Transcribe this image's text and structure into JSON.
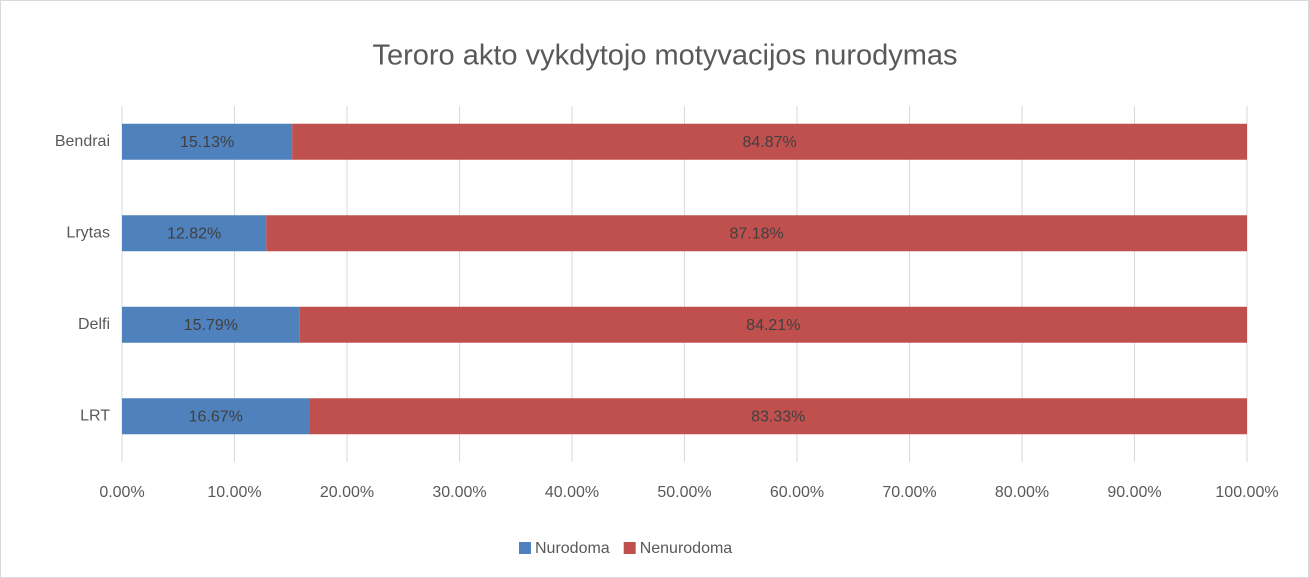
{
  "chart_data": {
    "type": "stacked-barh",
    "title": "Teroro akto vykdytojo motyvacijos nurodymas",
    "categories": [
      "Bendrai",
      "Lrytas",
      "Delfi",
      "LRT"
    ],
    "series": [
      {
        "name": "Nurodoma",
        "color": "#4f81bd",
        "values": [
          15.13,
          12.82,
          15.79,
          16.67
        ],
        "value_labels": [
          "15.13%",
          "12.82%",
          "15.79%",
          "16.67%"
        ]
      },
      {
        "name": "Nenurodoma",
        "color": "#c0504d",
        "values": [
          84.87,
          87.18,
          84.21,
          83.33
        ],
        "value_labels": [
          "84.87%",
          "87.18%",
          "84.21%",
          "83.33%"
        ]
      }
    ],
    "xlim": [
      0,
      100
    ],
    "xticks": [
      {
        "value": 0,
        "label": "0.00%"
      },
      {
        "value": 10,
        "label": "10.00%"
      },
      {
        "value": 20,
        "label": "20.00%"
      },
      {
        "value": 30,
        "label": "30.00%"
      },
      {
        "value": 40,
        "label": "40.00%"
      },
      {
        "value": 50,
        "label": "50.00%"
      },
      {
        "value": 60,
        "label": "60.00%"
      },
      {
        "value": 70,
        "label": "70.00%"
      },
      {
        "value": 80,
        "label": "80.00%"
      },
      {
        "value": 90,
        "label": "90.00%"
      },
      {
        "value": 100,
        "label": "100.00%"
      }
    ],
    "grid": true,
    "legend": "bottom"
  }
}
